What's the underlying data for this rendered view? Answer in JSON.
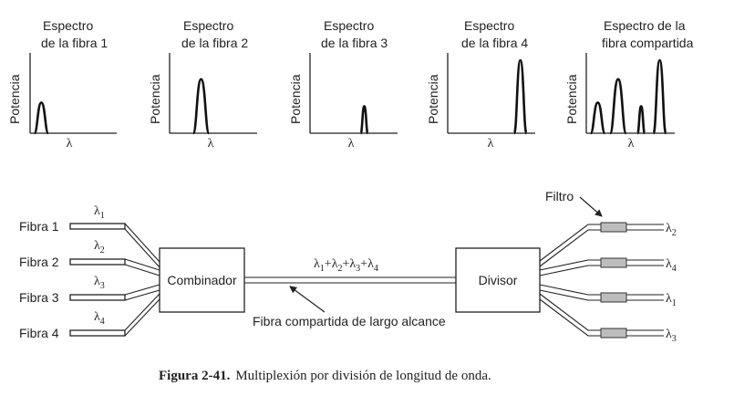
{
  "spectra": [
    {
      "title_l1": "Espectro",
      "title_l2": "de la fibra 1",
      "ylabel": "Potencia",
      "xlabel": "λ",
      "peaks": [
        {
          "pos": 0.13,
          "height": 0.42,
          "width": 0.16
        }
      ]
    },
    {
      "title_l1": "Espectro",
      "title_l2": "de la fibra 2",
      "ylabel": "Potencia",
      "xlabel": "λ",
      "peaks": [
        {
          "pos": 0.36,
          "height": 0.74,
          "width": 0.18
        }
      ]
    },
    {
      "title_l1": "Espectro",
      "title_l2": "de la fibra 3",
      "ylabel": "Potencia",
      "xlabel": "λ",
      "peaks": [
        {
          "pos": 0.62,
          "height": 0.37,
          "width": 0.08
        }
      ]
    },
    {
      "title_l1": "Espectro",
      "title_l2": "de la fibra 4",
      "ylabel": "Potencia",
      "xlabel": "λ",
      "peaks": [
        {
          "pos": 0.83,
          "height": 1.0,
          "width": 0.14
        }
      ]
    },
    {
      "title_l1": "Espectro de la",
      "title_l2": "fibra compartida",
      "ylabel": "Potencia",
      "xlabel": "λ",
      "peaks": [
        {
          "pos": 0.13,
          "height": 0.42,
          "width": 0.16
        },
        {
          "pos": 0.36,
          "height": 0.74,
          "width": 0.18
        },
        {
          "pos": 0.62,
          "height": 0.37,
          "width": 0.08
        },
        {
          "pos": 0.83,
          "height": 1.0,
          "width": 0.14
        }
      ]
    }
  ],
  "inputs": [
    {
      "label": "Fibra 1",
      "lambda": "λ",
      "sub": "1"
    },
    {
      "label": "Fibra 2",
      "lambda": "λ",
      "sub": "2"
    },
    {
      "label": "Fibra 3",
      "lambda": "λ",
      "sub": "3"
    },
    {
      "label": "Fibra 4",
      "lambda": "λ",
      "sub": "4"
    }
  ],
  "combiner_label": "Combinador",
  "splitter_label": "Divisor",
  "shared_fiber_lambda": {
    "parts": [
      {
        "t": "λ",
        "s": "1"
      },
      {
        "t": "+λ",
        "s": "2"
      },
      {
        "t": "+λ",
        "s": "3"
      },
      {
        "t": "+λ",
        "s": "4"
      }
    ]
  },
  "shared_fiber_label": "Fibra compartida de largo alcance",
  "filter_label": "Filtro",
  "outputs": [
    {
      "lambda": "λ",
      "sub": "2"
    },
    {
      "lambda": "λ",
      "sub": "4"
    },
    {
      "lambda": "λ",
      "sub": "1"
    },
    {
      "lambda": "λ",
      "sub": "3"
    }
  ],
  "caption": {
    "label": "Figura 2-41.",
    "text": "Multiplexión por división de longitud de onda."
  }
}
